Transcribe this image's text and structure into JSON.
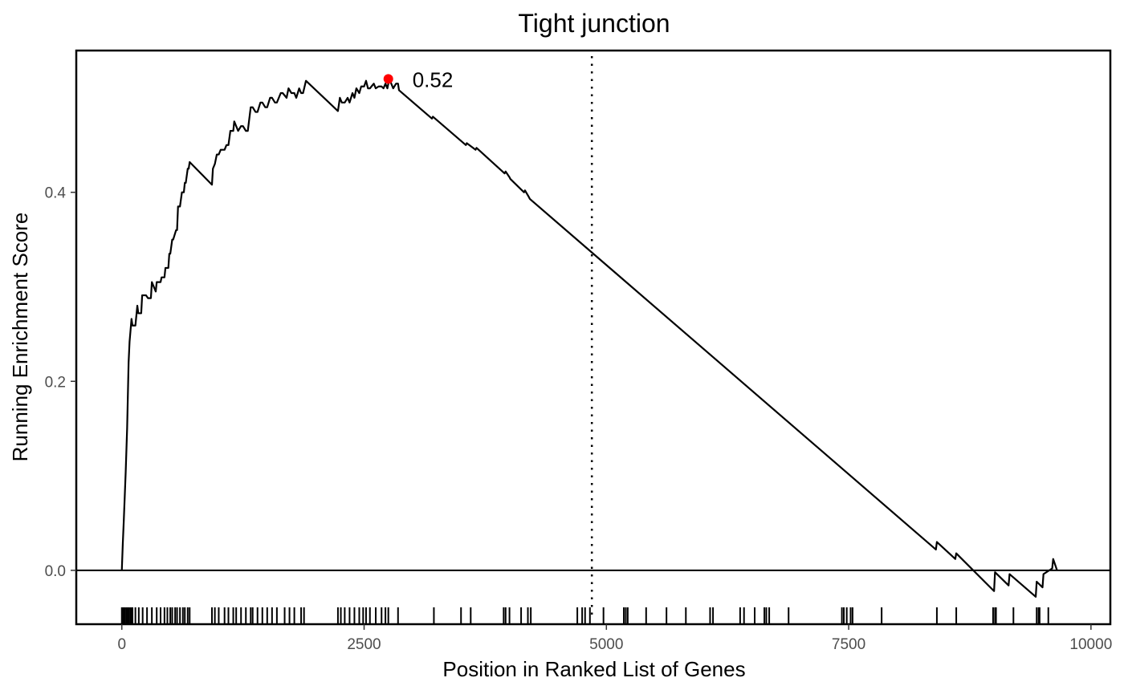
{
  "chart_data": {
    "type": "line",
    "title": "Tight junction",
    "xlabel": "Position in Ranked List of Genes",
    "ylabel": "Running Enrichment Score",
    "xlim": [
      -470,
      10200
    ],
    "ylim": [
      -0.057,
      0.55
    ],
    "x_ticks": [
      0,
      2500,
      5000,
      7500,
      10000
    ],
    "x_tick_labels": [
      "0",
      "2500",
      "5000",
      "7500",
      "10000"
    ],
    "y_ticks": [
      0.0,
      0.2,
      0.4
    ],
    "y_tick_labels": [
      "0.0",
      "0.2",
      "0.4"
    ],
    "grid": false,
    "reference_lines": {
      "zero_line_y": 0.0,
      "dotted_vline_x": 4850
    },
    "peak": {
      "x": 2750,
      "y": 0.52,
      "label": "0.52",
      "color": "#ff0000"
    },
    "line_color": "#000000",
    "series": [
      {
        "x": [
          0,
          10,
          20,
          30,
          40,
          55,
          70,
          80,
          90,
          100,
          110,
          140,
          160,
          170,
          200,
          210,
          250,
          270,
          300,
          310,
          350,
          360,
          400,
          410,
          440,
          450,
          480,
          490,
          500,
          520,
          530,
          560,
          570,
          580,
          600,
          620,
          640,
          650,
          660,
          680,
          690,
          700,
          930,
          940,
          960,
          980,
          1000,
          1020,
          1060,
          1080,
          1100,
          1120,
          1150,
          1160,
          1200,
          1230,
          1250,
          1280,
          1300,
          1330,
          1350,
          1380,
          1400,
          1430,
          1450,
          1480,
          1500,
          1530,
          1550,
          1580,
          1600,
          1640,
          1660,
          1700,
          1720,
          1750,
          1780,
          1800,
          1830,
          1850,
          1870,
          1900,
          2230,
          2250,
          2270,
          2300,
          2330,
          2350,
          2380,
          2400,
          2420,
          2450,
          2470,
          2500,
          2520,
          2540,
          2560,
          2600,
          2620,
          2650,
          2680,
          2700,
          2720,
          2740,
          2760,
          2800,
          2830,
          2850,
          2860,
          3200,
          3210,
          3550,
          3560,
          3650,
          3660,
          3950,
          3960,
          4000,
          4010,
          4150,
          4160,
          4200,
          4210,
          8400,
          8410,
          8600,
          8610,
          9000,
          9010,
          9150,
          9160,
          9430,
          9440,
          9500,
          9510,
          9600,
          9610,
          9650
        ],
        "y": [
          0.0,
          0.028,
          0.052,
          0.078,
          0.104,
          0.151,
          0.22,
          0.242,
          0.254,
          0.266,
          0.259,
          0.259,
          0.28,
          0.272,
          0.272,
          0.291,
          0.291,
          0.288,
          0.288,
          0.305,
          0.295,
          0.305,
          0.305,
          0.31,
          0.31,
          0.32,
          0.32,
          0.335,
          0.335,
          0.35,
          0.35,
          0.36,
          0.36,
          0.385,
          0.385,
          0.4,
          0.4,
          0.41,
          0.41,
          0.425,
          0.425,
          0.432,
          0.408,
          0.425,
          0.43,
          0.44,
          0.44,
          0.445,
          0.445,
          0.45,
          0.45,
          0.465,
          0.465,
          0.475,
          0.465,
          0.47,
          0.47,
          0.465,
          0.465,
          0.49,
          0.49,
          0.485,
          0.485,
          0.495,
          0.495,
          0.49,
          0.49,
          0.5,
          0.5,
          0.495,
          0.495,
          0.505,
          0.505,
          0.5,
          0.51,
          0.505,
          0.505,
          0.5,
          0.51,
          0.505,
          0.505,
          0.518,
          0.486,
          0.5,
          0.495,
          0.495,
          0.5,
          0.495,
          0.505,
          0.5,
          0.51,
          0.505,
          0.512,
          0.512,
          0.518,
          0.51,
          0.51,
          0.515,
          0.51,
          0.512,
          0.512,
          0.51,
          0.515,
          0.51,
          0.52,
          0.51,
          0.515,
          0.515,
          0.508,
          0.478,
          0.48,
          0.45,
          0.452,
          0.445,
          0.447,
          0.42,
          0.422,
          0.416,
          0.414,
          0.4,
          0.402,
          0.395,
          0.393,
          0.022,
          0.03,
          0.012,
          0.018,
          -0.022,
          -0.002,
          -0.016,
          -0.004,
          -0.028,
          -0.012,
          -0.018,
          -0.004,
          0.002,
          0.012,
          0.0
        ]
      }
    ],
    "gene_hits": [
      0,
      15,
      30,
      45,
      60,
      75,
      90,
      100,
      110,
      140,
      175,
      215,
      260,
      310,
      360,
      400,
      440,
      470,
      500,
      520,
      550,
      570,
      600,
      630,
      650,
      680,
      700,
      930,
      960,
      1000,
      1060,
      1100,
      1150,
      1180,
      1230,
      1280,
      1330,
      1350,
      1400,
      1450,
      1500,
      1550,
      1600,
      1680,
      1730,
      1780,
      1850,
      1880,
      2230,
      2260,
      2300,
      2350,
      2400,
      2450,
      2490,
      2520,
      2560,
      2620,
      2680,
      2720,
      2750,
      2850,
      3220,
      3500,
      3600,
      3940,
      3960,
      4000,
      4120,
      4190,
      4220,
      4700,
      4750,
      4780,
      4830,
      4970,
      5180,
      5200,
      5220,
      5410,
      5620,
      5820,
      6070,
      6100,
      6380,
      6420,
      6530,
      6630,
      6650,
      6680,
      6880,
      7430,
      7450,
      7480,
      7520,
      7540,
      7840,
      8410,
      8610,
      8990,
      9010,
      9020,
      9200,
      9440,
      9460,
      9470,
      9560
    ]
  }
}
